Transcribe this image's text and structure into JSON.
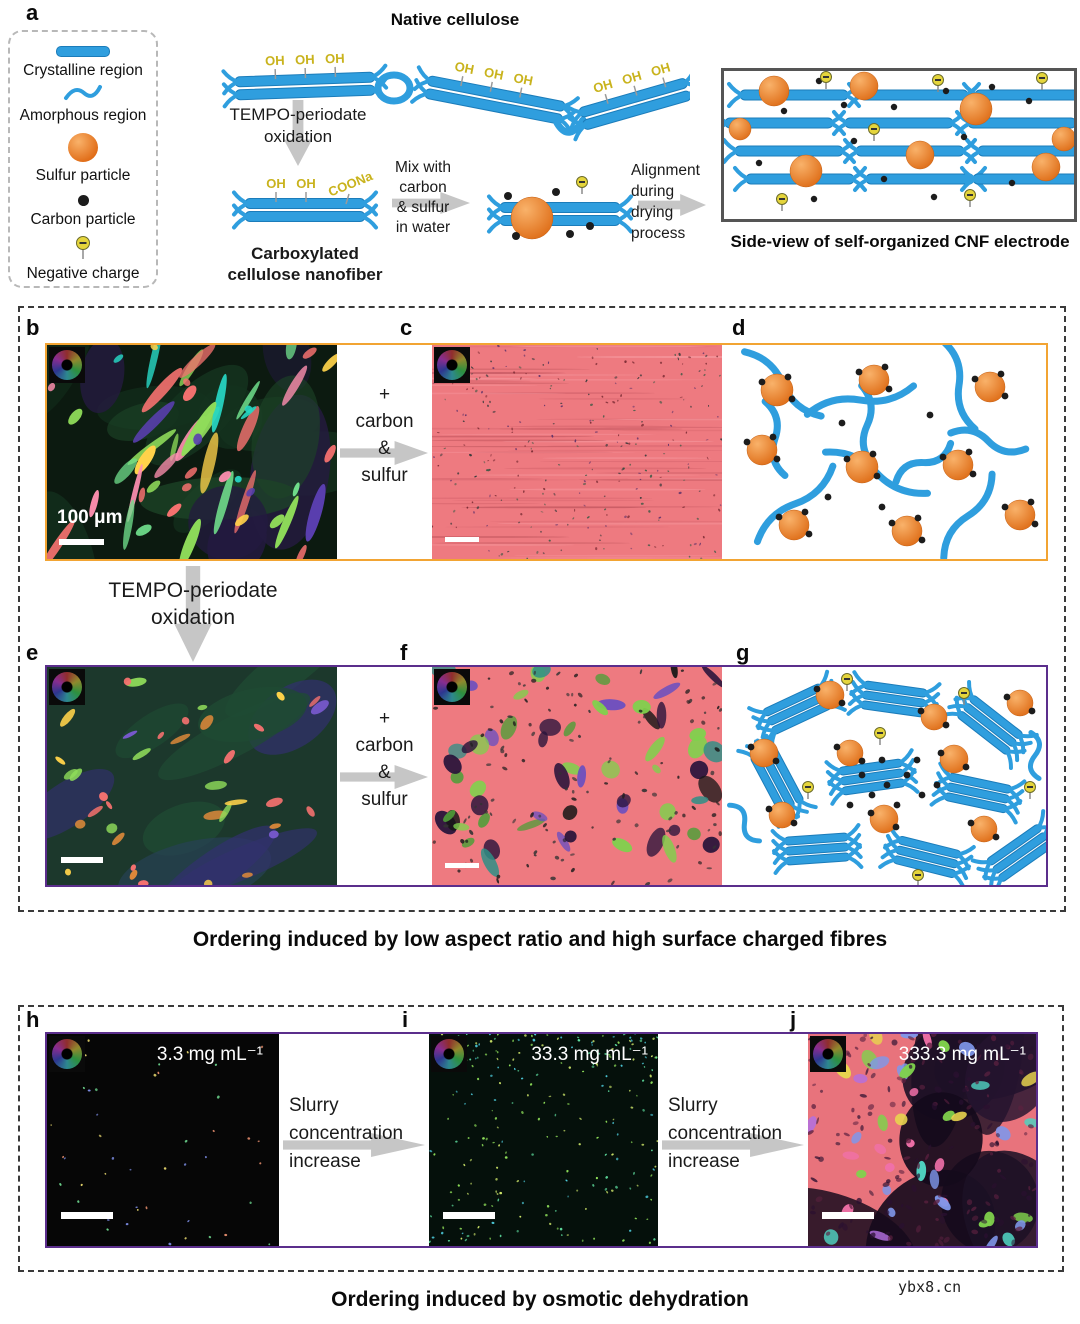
{
  "colors": {
    "fiber_blue": "#2f9ede",
    "fiber_blue_dark": "#1b7cba",
    "sulfur_orange": "#e4731c",
    "carbon_black": "#1c1c1c",
    "charge_yellow": "#e5d53c",
    "arrow_gray": "#c6c6c6",
    "row1_border": "#f2a433",
    "row2_border": "#5b2e8c",
    "micro_pink": "#ee7a80",
    "micrograph_palettes": {
      "b": [
        "#f4716f",
        "#f4716f",
        "#8fdc5a",
        "#ffd24a",
        "#27d6c3",
        "#5a3fb0",
        "#ff8fb0",
        "#6fdc8a"
      ],
      "e": [
        "#f4716f",
        "#ffd24a",
        "#8fdc5a",
        "#7a5ad0",
        "#e08a3a"
      ],
      "f": [
        "#161616",
        "#4f9e38",
        "#6a4fc0",
        "#2e8f86",
        "#27123a",
        "#7fd14c"
      ],
      "j": [
        "#7fd14c",
        "#7f97ea",
        "#b36fe0",
        "#4fd1c0",
        "#e8d44f",
        "#f070a8"
      ],
      "h": [
        "#e08a6a",
        "#6ad08a",
        "#7a8ae0",
        "#e0d06a"
      ],
      "i": [
        "#5fe0a0",
        "#4fd0e0",
        "#cfe86a",
        "#8fe05a"
      ]
    }
  },
  "labels": {
    "a": "a",
    "b": "b",
    "c": "c",
    "d": "d",
    "e": "e",
    "f": "f",
    "g": "g",
    "h": "h",
    "i": "i",
    "j": "j"
  },
  "panel_a": {
    "legend": {
      "items": [
        {
          "label": "Crystalline region"
        },
        {
          "label": "Amorphous region"
        },
        {
          "label": "Sulfur particle"
        },
        {
          "label": "Carbon particle"
        },
        {
          "label": "Negative charge"
        }
      ]
    },
    "native_title": "Native cellulose",
    "oh": "OH",
    "coona": "COONa",
    "tempo_step": {
      "line1": "TEMPO-periodate",
      "line2": "oxidation"
    },
    "mix_step": {
      "line1": "Mix with",
      "line2": "carbon",
      "line3": "& sulfur",
      "line4": "in water"
    },
    "align_step": {
      "line1": "Alignment",
      "line2": "during",
      "line3": "drying",
      "line4": "process"
    },
    "carboxylated_caption": {
      "line1": "Carboxylated",
      "line2": "cellulose nanofiber"
    },
    "sideview_caption": "Side-view of self-organized CNF electrode"
  },
  "section_fibres": {
    "plus_arrow": {
      "line1": "+",
      "line2": "carbon",
      "line3": "&",
      "line4": "sulfur"
    },
    "tempo_step": {
      "line1": "TEMPO-periodate",
      "line2": "oxidation"
    },
    "scale_label": "100 μm",
    "caption": "Ordering induced by low aspect ratio and high surface charged fibres"
  },
  "section_osmotic": {
    "slurry_step": {
      "line1": "Slurry",
      "line2": "concentration",
      "line3": "increase"
    },
    "concentrations": [
      "3.3 mg mL⁻¹",
      "33.3 mg mL⁻¹",
      "333.3 mg mL⁻¹"
    ],
    "caption": "Ordering induced by osmotic dehydration"
  },
  "watermark": "ybx8.cn"
}
